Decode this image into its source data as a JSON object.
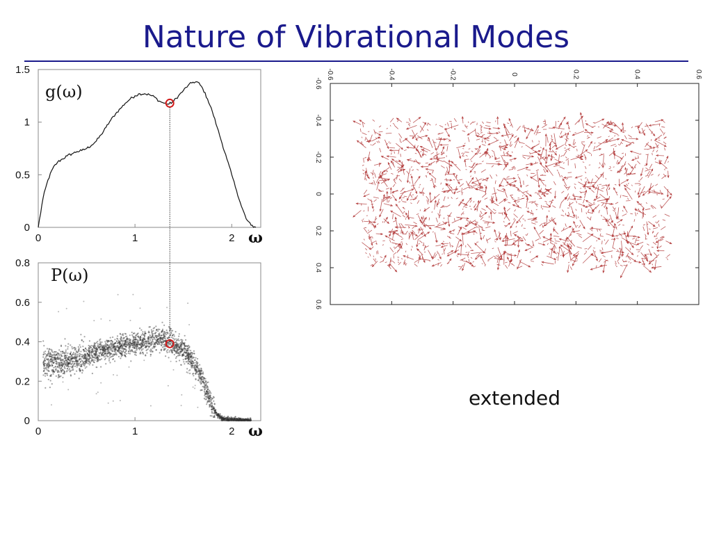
{
  "slide": {
    "title": "Nature of Vibrational Modes",
    "caption": "extended"
  },
  "colors": {
    "title": "#1a1a8c",
    "marker": "#d11a1a",
    "arrow": "#b23a3a",
    "curve": "#111111",
    "scatter": "#333333"
  },
  "chart_data": [
    {
      "type": "line",
      "title": "",
      "label": "g(ω)",
      "xlabel": "ω",
      "ylabel": "",
      "xlim": [
        0,
        2.3
      ],
      "ylim": [
        0,
        1.5
      ],
      "xticks": [
        "0",
        "1",
        "2"
      ],
      "yticks": [
        "0",
        "0.5",
        "1",
        "1.5"
      ],
      "x": [
        0.0,
        0.05,
        0.1,
        0.15,
        0.2,
        0.25,
        0.3,
        0.35,
        0.4,
        0.45,
        0.5,
        0.55,
        0.6,
        0.65,
        0.7,
        0.75,
        0.8,
        0.85,
        0.9,
        0.95,
        1.0,
        1.05,
        1.1,
        1.15,
        1.2,
        1.25,
        1.3,
        1.35,
        1.4,
        1.45,
        1.5,
        1.55,
        1.6,
        1.65,
        1.7,
        1.75,
        1.8,
        1.85,
        1.9,
        1.95,
        2.0,
        2.05,
        2.1,
        2.15,
        2.2,
        2.25
      ],
      "values": [
        0.0,
        0.28,
        0.45,
        0.56,
        0.62,
        0.65,
        0.68,
        0.7,
        0.72,
        0.73,
        0.75,
        0.78,
        0.82,
        0.88,
        0.95,
        1.02,
        1.08,
        1.13,
        1.18,
        1.22,
        1.25,
        1.27,
        1.27,
        1.26,
        1.24,
        1.2,
        1.18,
        1.17,
        1.2,
        1.25,
        1.3,
        1.35,
        1.38,
        1.38,
        1.32,
        1.22,
        1.1,
        0.95,
        0.8,
        0.65,
        0.5,
        0.35,
        0.2,
        0.08,
        0.02,
        0.0
      ],
      "marker": {
        "x": 1.36,
        "y": 1.18
      }
    },
    {
      "type": "scatter",
      "title": "",
      "label": "P(ω)",
      "xlabel": "ω",
      "ylabel": "",
      "xlim": [
        0,
        2.3
      ],
      "ylim": [
        0,
        0.8
      ],
      "xticks": [
        "0",
        "1",
        "2"
      ],
      "yticks": [
        "0",
        "0.2",
        "0.4",
        "0.6",
        "0.8"
      ],
      "trend_x": [
        0.05,
        0.2,
        0.4,
        0.6,
        0.8,
        1.0,
        1.1,
        1.2,
        1.3,
        1.4,
        1.5,
        1.6,
        1.7,
        1.75,
        1.8,
        1.85,
        1.9,
        2.0,
        2.1,
        2.2
      ],
      "trend_y": [
        0.3,
        0.29,
        0.31,
        0.34,
        0.37,
        0.39,
        0.4,
        0.41,
        0.41,
        0.39,
        0.36,
        0.3,
        0.2,
        0.14,
        0.07,
        0.03,
        0.01,
        0.004,
        0.002,
        0.0
      ],
      "marker": {
        "x": 1.36,
        "y": 0.39
      }
    },
    {
      "type": "vector-field",
      "title": "",
      "xlim": [
        -0.6,
        0.6
      ],
      "ylim": [
        -0.6,
        0.6
      ],
      "xticks": [
        "-0.6",
        "-0.4",
        "-0.2",
        "0",
        "0.2",
        "0.4",
        "0.6"
      ],
      "yticks": [
        "-0.6",
        "-0.4",
        "-0.2",
        "0",
        "0.2",
        "0.4",
        "0.6"
      ],
      "field_extent_x": [
        -0.5,
        0.5
      ],
      "field_extent_y": [
        -0.5,
        0.5
      ]
    }
  ]
}
